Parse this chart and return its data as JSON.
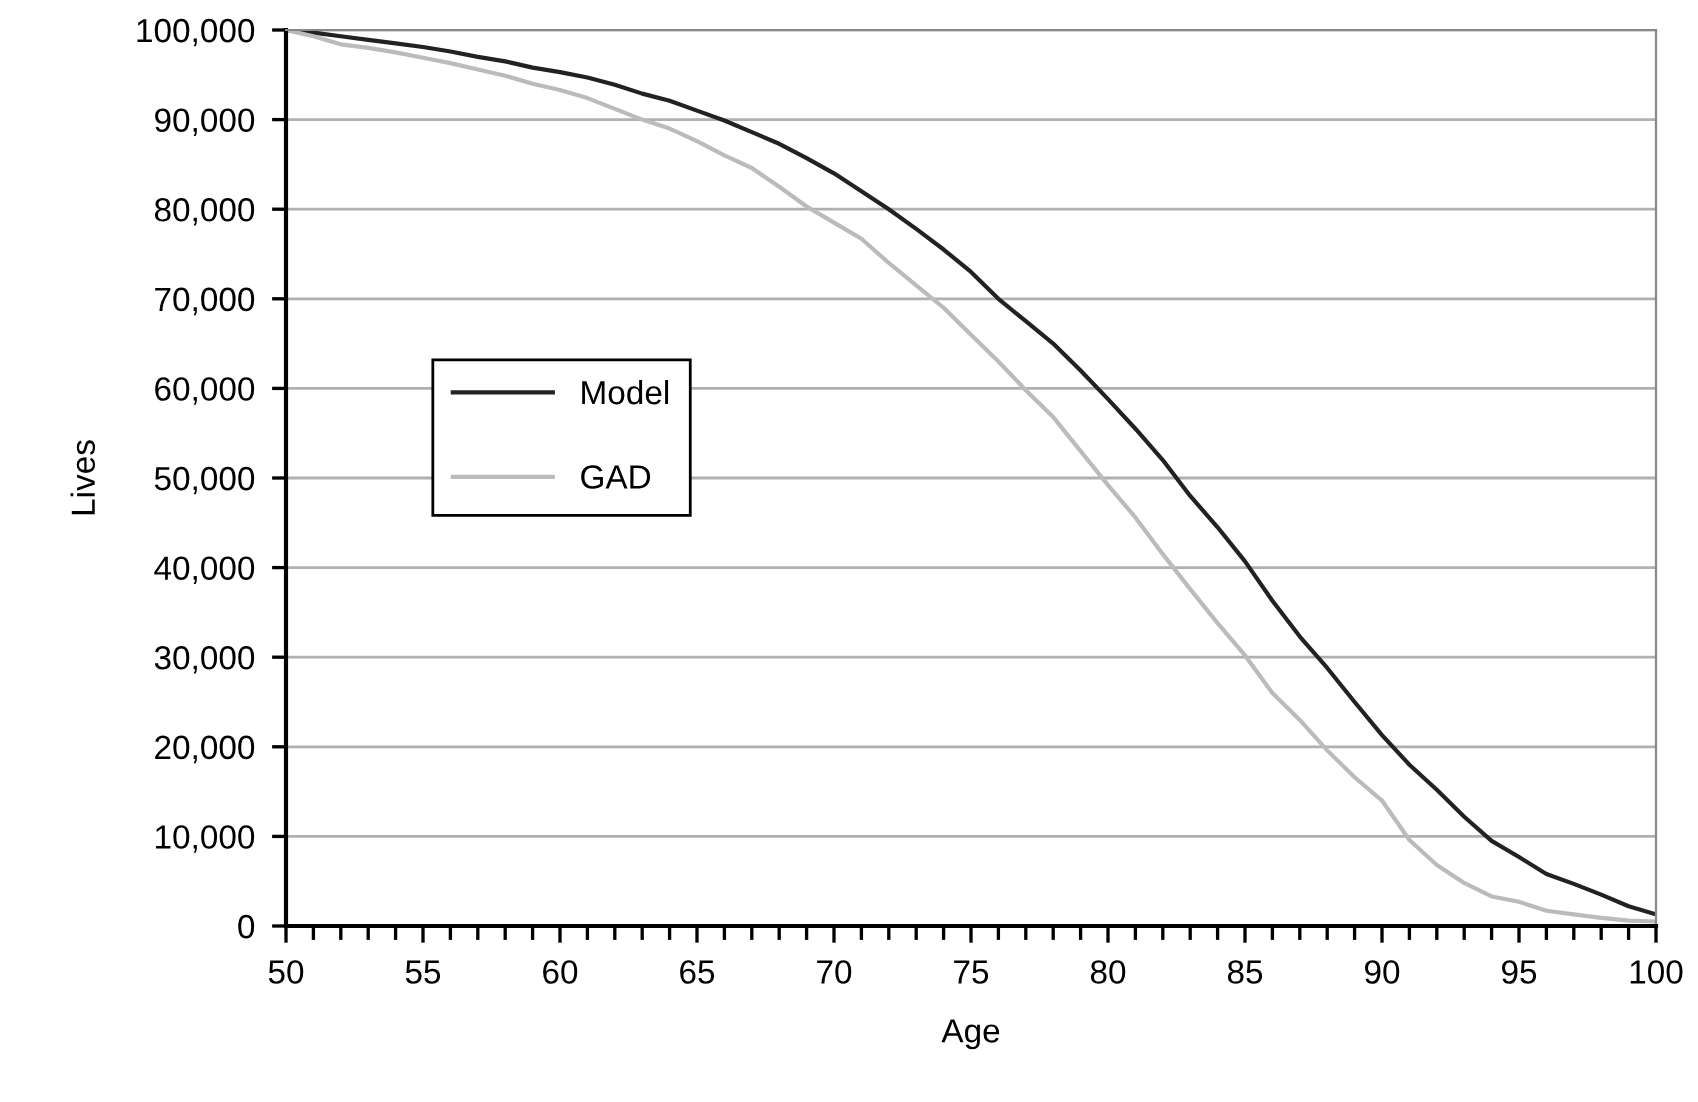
{
  "chart_data": {
    "type": "line",
    "xlabel": "Age",
    "ylabel": "Lives",
    "x": [
      50,
      51,
      52,
      53,
      54,
      55,
      56,
      57,
      58,
      59,
      60,
      61,
      62,
      63,
      64,
      65,
      66,
      67,
      68,
      69,
      70,
      71,
      72,
      73,
      74,
      75,
      76,
      77,
      78,
      79,
      80,
      81,
      82,
      83,
      84,
      85,
      86,
      87,
      88,
      89,
      90,
      91,
      92,
      93,
      94,
      95,
      96,
      97,
      98,
      99,
      100
    ],
    "series": [
      {
        "name": "Model",
        "color": "#222222",
        "values": [
          100000,
          99700,
          99300,
          98900,
          98500,
          98100,
          97600,
          97000,
          96500,
          95800,
          95300,
          94700,
          93900,
          92900,
          92100,
          91000,
          89900,
          88600,
          87300,
          85700,
          84000,
          82000,
          80000,
          77800,
          75500,
          73000,
          70000,
          67500,
          65000,
          62000,
          58800,
          55500,
          52000,
          48000,
          44500,
          40700,
          36300,
          32300,
          28800,
          25000,
          21300,
          18000,
          15200,
          12200,
          9500,
          7700,
          5800,
          4700,
          3500,
          2200,
          1300
        ]
      },
      {
        "name": "GAD",
        "color": "#bbbbbb",
        "values": [
          100000,
          99300,
          98400,
          98000,
          97500,
          96900,
          96300,
          95600,
          94900,
          94000,
          93300,
          92400,
          91200,
          90000,
          89000,
          87600,
          86000,
          84600,
          82500,
          80300,
          78500,
          76700,
          74000,
          71500,
          69000,
          66000,
          63000,
          59800,
          56800,
          53000,
          49200,
          45600,
          41500,
          37600,
          33800,
          30200,
          26000,
          23000,
          19600,
          16600,
          14000,
          9600,
          6800,
          4800,
          3300,
          2700,
          1700,
          1300,
          900,
          600,
          500
        ]
      }
    ],
    "xlim": [
      50,
      100
    ],
    "xticks": [
      50,
      55,
      60,
      65,
      70,
      75,
      80,
      85,
      90,
      95,
      100
    ],
    "ylim": [
      0,
      100000
    ],
    "yticks": [
      {
        "value": 0,
        "label": "0"
      },
      {
        "value": 10000,
        "label": "10,000"
      },
      {
        "value": 20000,
        "label": "20,000"
      },
      {
        "value": 30000,
        "label": "30,000"
      },
      {
        "value": 40000,
        "label": "40,000"
      },
      {
        "value": 50000,
        "label": "50,000"
      },
      {
        "value": 60000,
        "label": "60,000"
      },
      {
        "value": 70000,
        "label": "70,000"
      },
      {
        "value": 80000,
        "label": "80,000"
      },
      {
        "value": 90000,
        "label": "90,000"
      },
      {
        "value": 100000,
        "label": "100,000"
      }
    ],
    "grid": "y",
    "legend": "left",
    "marker": "none",
    "line_style": "solid"
  }
}
